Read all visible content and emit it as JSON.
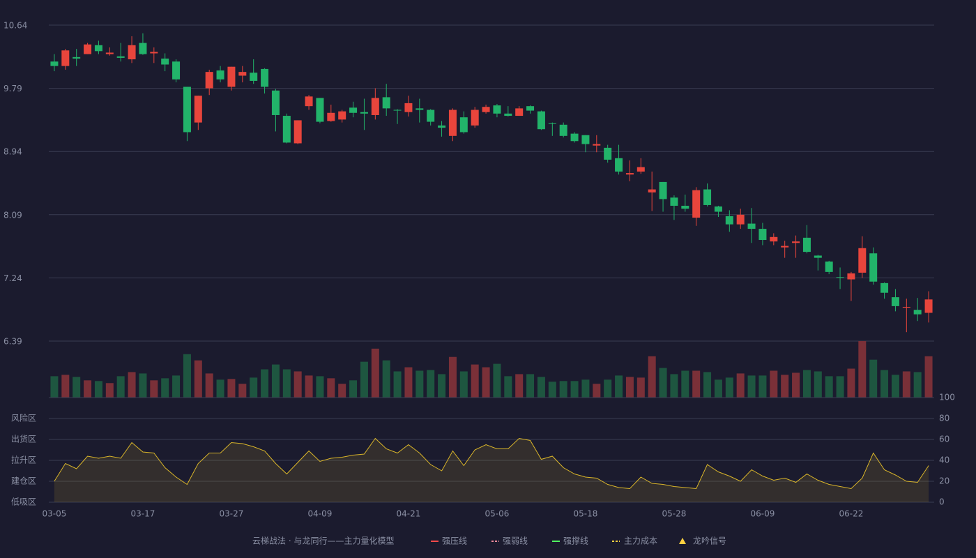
{
  "chart_data": [
    {
      "type": "candlestick",
      "categories": [
        "03-05",
        null,
        null,
        null,
        null,
        null,
        null,
        null,
        "03-17",
        null,
        null,
        null,
        null,
        null,
        null,
        null,
        "03-27",
        null,
        null,
        null,
        null,
        null,
        null,
        null,
        "04-09",
        null,
        null,
        null,
        null,
        null,
        null,
        null,
        "04-21",
        null,
        null,
        null,
        null,
        null,
        null,
        null,
        "05-06",
        null,
        null,
        null,
        null,
        null,
        null,
        null,
        "05-18",
        null,
        null,
        null,
        null,
        null,
        null,
        null,
        "05-28",
        null,
        null,
        null,
        null,
        null,
        null,
        null,
        "06-09",
        null,
        null,
        null,
        null,
        null,
        null,
        null,
        "06-22",
        null,
        null,
        null,
        null,
        null,
        null,
        null
      ],
      "open": [
        10.15,
        10.09,
        10.21,
        10.25,
        10.37,
        10.25,
        10.22,
        10.18,
        10.4,
        10.26,
        10.19,
        10.15,
        9.81,
        9.33,
        9.79,
        10.03,
        9.81,
        9.96,
        10.0,
        10.05,
        9.76,
        9.42,
        9.05,
        9.55,
        9.66,
        9.35,
        9.37,
        9.53,
        9.47,
        9.43,
        9.67,
        9.5,
        9.47,
        9.52,
        9.5,
        9.29,
        9.15,
        9.4,
        9.29,
        9.47,
        9.56,
        9.45,
        9.42,
        9.55,
        9.48,
        9.32,
        9.3,
        9.18,
        9.16,
        9.02,
        8.99,
        8.85,
        8.63,
        8.67,
        8.39,
        8.53,
        8.32,
        8.21,
        8.05,
        8.43,
        8.2,
        8.07,
        7.96,
        7.97,
        7.9,
        7.73,
        7.65,
        7.71,
        7.78,
        7.54,
        7.46,
        7.25,
        7.22,
        7.31,
        7.57,
        7.17,
        6.98,
        6.84,
        6.81,
        6.77
      ],
      "high": [
        10.25,
        10.32,
        10.32,
        10.4,
        10.43,
        10.34,
        10.4,
        10.49,
        10.53,
        10.34,
        10.26,
        10.18,
        9.81,
        9.69,
        10.04,
        10.09,
        10.08,
        10.09,
        10.18,
        10.06,
        9.78,
        9.45,
        9.36,
        9.7,
        9.66,
        9.57,
        9.5,
        9.61,
        9.65,
        9.79,
        9.85,
        9.51,
        9.69,
        9.65,
        9.51,
        9.35,
        9.52,
        9.48,
        9.54,
        9.57,
        9.58,
        9.55,
        9.55,
        9.56,
        9.49,
        9.33,
        9.33,
        9.2,
        9.16,
        9.16,
        9.03,
        9.03,
        8.82,
        8.85,
        8.67,
        8.53,
        8.35,
        8.36,
        8.46,
        8.51,
        8.21,
        8.15,
        8.17,
        8.18,
        7.98,
        7.84,
        7.74,
        7.81,
        7.95,
        7.55,
        7.47,
        7.38,
        7.32,
        7.8,
        7.65,
        7.18,
        7.09,
        6.96,
        6.97,
        7.06
      ],
      "low": [
        10.02,
        10.04,
        10.09,
        10.25,
        10.25,
        10.23,
        10.15,
        10.13,
        10.24,
        10.13,
        10.02,
        9.87,
        9.08,
        9.23,
        9.7,
        9.87,
        9.76,
        9.87,
        9.85,
        9.72,
        9.21,
        9.05,
        9.04,
        9.5,
        9.32,
        9.34,
        9.33,
        9.4,
        9.23,
        9.37,
        9.42,
        9.31,
        9.41,
        9.33,
        9.29,
        9.14,
        9.08,
        9.18,
        9.26,
        9.45,
        9.4,
        9.41,
        9.42,
        9.45,
        9.23,
        9.15,
        9.13,
        9.06,
        8.93,
        8.93,
        8.79,
        8.63,
        8.54,
        8.64,
        8.14,
        8.13,
        8.02,
        8.13,
        7.94,
        8.2,
        8.06,
        7.86,
        7.9,
        7.71,
        7.68,
        7.68,
        7.51,
        7.51,
        7.57,
        7.34,
        7.29,
        7.09,
        6.93,
        7.24,
        7.15,
        6.96,
        6.79,
        6.51,
        6.66,
        6.64
      ],
      "close": [
        10.09,
        10.3,
        10.19,
        10.38,
        10.29,
        10.27,
        10.2,
        10.37,
        10.25,
        10.28,
        10.11,
        9.91,
        9.2,
        9.69,
        10.01,
        9.91,
        10.08,
        10.01,
        9.89,
        9.81,
        9.43,
        9.06,
        9.36,
        9.68,
        9.34,
        9.46,
        9.48,
        9.46,
        9.45,
        9.66,
        9.52,
        9.49,
        9.59,
        9.5,
        9.34,
        9.26,
        9.5,
        9.2,
        9.5,
        9.54,
        9.45,
        9.42,
        9.52,
        9.49,
        9.24,
        9.31,
        9.15,
        9.08,
        9.04,
        9.04,
        8.83,
        8.67,
        8.65,
        8.73,
        8.43,
        8.3,
        8.21,
        8.17,
        8.42,
        8.22,
        8.13,
        7.96,
        8.09,
        7.9,
        7.75,
        7.79,
        7.67,
        7.73,
        7.59,
        7.51,
        7.32,
        7.24,
        7.3,
        7.64,
        7.19,
        7.04,
        6.86,
        6.85,
        6.75,
        6.95
      ],
      "up_color": "#e8453c",
      "down_color": "#22b36a",
      "ylim": [
        6.39,
        10.64
      ],
      "yticks": [
        10.64,
        9.79,
        8.94,
        8.09,
        7.24,
        6.39
      ],
      "grid": true
    },
    {
      "type": "bar",
      "values": [
        31,
        33,
        30,
        25,
        24,
        21,
        31,
        37,
        35,
        25,
        28,
        32,
        63,
        54,
        35,
        26,
        27,
        20,
        29,
        41,
        48,
        41,
        38,
        32,
        31,
        28,
        20,
        25,
        52,
        71,
        54,
        38,
        44,
        39,
        40,
        34,
        59,
        38,
        48,
        44,
        49,
        31,
        34,
        34,
        30,
        23,
        24,
        24,
        26,
        20,
        26,
        32,
        30,
        29,
        60,
        43,
        34,
        39,
        39,
        37,
        26,
        29,
        35,
        32,
        32,
        39,
        33,
        36,
        40,
        38,
        31,
        31,
        42,
        82,
        55,
        40,
        33,
        38,
        37,
        60
      ],
      "up_color": "#7a3038",
      "down_color": "#1e5640"
    },
    {
      "type": "area",
      "values": [
        20,
        37,
        32,
        44,
        42,
        44,
        42,
        57,
        48,
        47,
        33,
        24,
        17,
        37,
        47,
        47,
        57,
        56,
        53,
        49,
        37,
        27,
        38,
        49,
        39,
        42,
        43,
        45,
        46,
        61,
        51,
        47,
        55,
        47,
        36,
        30,
        49,
        35,
        50,
        55,
        51,
        51,
        61,
        59,
        41,
        44,
        33,
        27,
        24,
        23,
        17,
        14,
        13,
        24,
        18,
        17,
        15,
        14,
        13,
        36,
        29,
        25,
        20,
        31,
        25,
        21,
        23,
        19,
        27,
        21,
        17,
        15,
        13,
        23,
        47,
        31,
        26,
        20,
        19,
        35
      ],
      "color": "#d9b52a",
      "axis": "y2",
      "y2lim": [
        0,
        100
      ],
      "y2ticks": [
        100,
        80,
        60,
        40,
        20,
        0
      ],
      "y2tick_colors": [
        "#3ddc4a",
        "#f0a030",
        "#e040e0",
        "#4a90e2",
        "#e04848",
        "#e04848"
      ],
      "zones": [
        {
          "label": "风险区",
          "value": 80,
          "color": "#f0a030"
        },
        {
          "label": "出货区",
          "value": 60,
          "color": "#e040e0"
        },
        {
          "label": "拉升区",
          "value": 40,
          "color": "#4a90e2"
        },
        {
          "label": "建仓区",
          "value": 20,
          "color": "#e04848"
        },
        {
          "label": "低吸区",
          "value": 0,
          "color": "#e04848"
        }
      ]
    }
  ],
  "legend": {
    "title": "云梯战法 · 与龙同行——主力量化模型",
    "title_color": "#e8c070",
    "items": [
      {
        "name": "强压线",
        "color": "#ff4a4a",
        "style": "solid"
      },
      {
        "name": "强弱线",
        "color": "#ff8a9a",
        "style": "dashed"
      },
      {
        "name": "强撑线",
        "color": "#50ff60",
        "style": "solid"
      },
      {
        "name": "主力成本",
        "color": "#ffd040",
        "style": "dashed"
      },
      {
        "name": "龙吟信号",
        "color": "#ffd040",
        "style": "triangle"
      }
    ]
  }
}
